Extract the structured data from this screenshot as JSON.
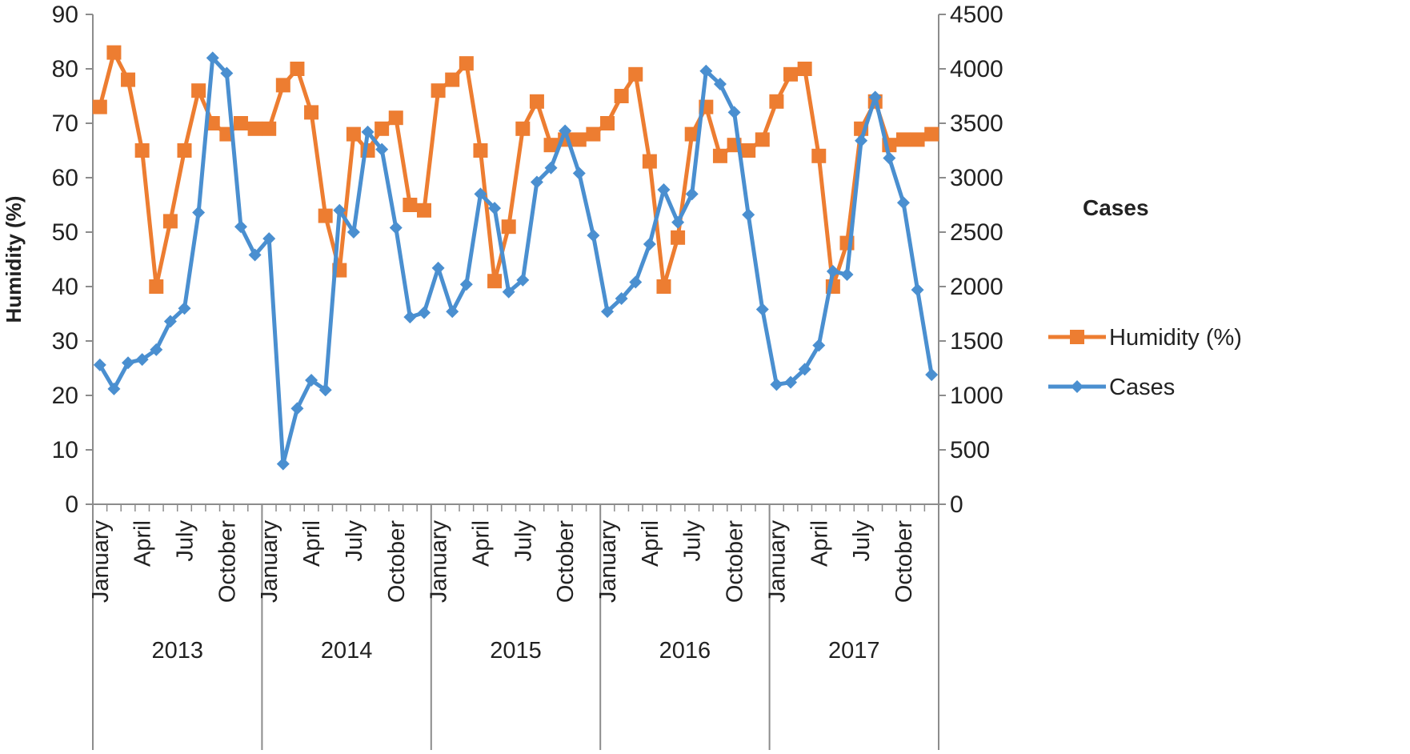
{
  "chart_data": {
    "type": "line",
    "legend_title": "Cases",
    "ylabel_left": "Humidity (%)",
    "ylim_left": [
      0,
      90
    ],
    "ylim_right": [
      0,
      4500
    ],
    "yticks_left": [
      0,
      10,
      20,
      30,
      40,
      50,
      60,
      70,
      80,
      90
    ],
    "yticks_right": [
      0,
      500,
      1000,
      1500,
      2000,
      2500,
      3000,
      3500,
      4000,
      4500
    ],
    "years": [
      "2013",
      "2014",
      "2015",
      "2016",
      "2017"
    ],
    "month_tick_labels": [
      "January",
      "April",
      "July",
      "October"
    ],
    "month_tick_indices": [
      0,
      3,
      6,
      9
    ],
    "months_per_year": 12,
    "series": [
      {
        "name": "Humidity (%)",
        "axis": "left",
        "color": "#ED7D31",
        "marker": "square",
        "values": [
          73,
          83,
          78,
          65,
          40,
          52,
          65,
          76,
          70,
          68,
          70,
          69,
          69,
          77,
          80,
          72,
          53,
          43,
          68,
          65,
          69,
          71,
          55,
          54,
          76,
          78,
          81,
          65,
          41,
          51,
          69,
          74,
          66,
          67,
          67,
          68,
          70,
          75,
          79,
          63,
          40,
          49,
          68,
          73,
          64,
          66,
          65,
          67,
          74,
          79,
          80,
          64,
          40,
          48,
          69,
          74,
          66,
          67,
          67,
          68
        ]
      },
      {
        "name": "Cases",
        "axis": "right",
        "color": "#4A8FD0",
        "marker": "diamond",
        "values": [
          1280,
          1060,
          1300,
          1330,
          1420,
          1680,
          1800,
          2680,
          4100,
          3960,
          2550,
          2290,
          2440,
          370,
          880,
          1140,
          1050,
          2700,
          2500,
          3420,
          3260,
          2540,
          1720,
          1760,
          2170,
          1770,
          2020,
          2850,
          2720,
          1950,
          2060,
          2960,
          3090,
          3430,
          3040,
          2470,
          1770,
          1890,
          2040,
          2390,
          2890,
          2590,
          2850,
          3980,
          3860,
          3600,
          2660,
          1790,
          1100,
          1120,
          1240,
          1460,
          2140,
          2110,
          3340,
          3740,
          3180,
          2770,
          1970,
          1190
        ]
      }
    ]
  }
}
